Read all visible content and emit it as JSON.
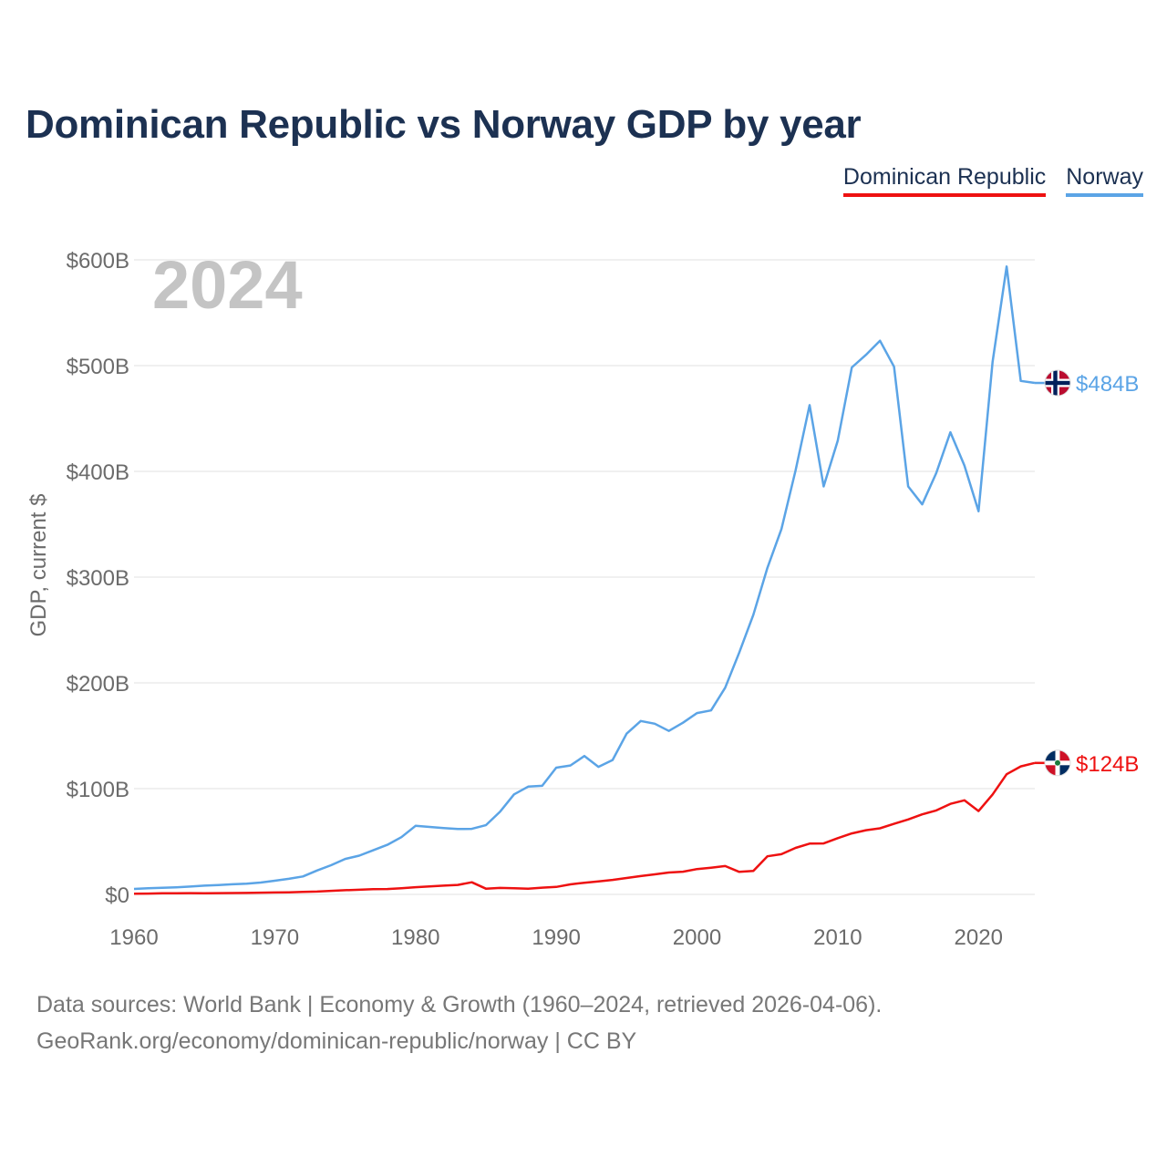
{
  "chart_data": {
    "type": "line",
    "title": "Dominican Republic vs Norway GDP by year",
    "ylabel": "GDP, current $",
    "xlabel": "",
    "year_label": "2024",
    "xlim": [
      1960,
      2024
    ],
    "ylim": [
      0,
      600
    ],
    "y_unit": "billion USD",
    "x_ticks": [
      1960,
      1970,
      1980,
      1990,
      2000,
      2010,
      2020
    ],
    "x_tick_labels": [
      "1960",
      "1970",
      "1980",
      "1990",
      "2000",
      "2010",
      "2020"
    ],
    "y_ticks": [
      0,
      100,
      200,
      300,
      400,
      500,
      600
    ],
    "y_tick_labels": [
      "$0",
      "$100B",
      "$200B",
      "$300B",
      "$400B",
      "$500B",
      "$600B"
    ],
    "grid": true,
    "legend_position": "top-right",
    "x": [
      1960,
      1961,
      1962,
      1963,
      1964,
      1965,
      1966,
      1967,
      1968,
      1969,
      1970,
      1971,
      1972,
      1973,
      1974,
      1975,
      1976,
      1977,
      1978,
      1979,
      1980,
      1981,
      1982,
      1983,
      1984,
      1985,
      1986,
      1987,
      1988,
      1989,
      1990,
      1991,
      1992,
      1993,
      1994,
      1995,
      1996,
      1997,
      1998,
      1999,
      2000,
      2001,
      2002,
      2003,
      2004,
      2005,
      2006,
      2007,
      2008,
      2009,
      2010,
      2011,
      2012,
      2013,
      2014,
      2015,
      2016,
      2017,
      2018,
      2019,
      2020,
      2021,
      2022,
      2023,
      2024
    ],
    "series": [
      {
        "name": "Dominican Republic",
        "color": "#ee1111",
        "flag": "dominican-republic-flag-icon",
        "end_label": "$124B",
        "values": [
          0.7,
          0.8,
          1.0,
          1.1,
          1.2,
          1.0,
          1.2,
          1.3,
          1.4,
          1.6,
          1.8,
          2.0,
          2.3,
          2.7,
          3.4,
          4.0,
          4.4,
          5.0,
          5.1,
          5.9,
          6.8,
          7.5,
          8.3,
          9.0,
          11.5,
          5.4,
          6.1,
          5.8,
          5.4,
          6.4,
          7.1,
          9.5,
          11.0,
          12.3,
          13.7,
          15.5,
          17.3,
          19.0,
          20.7,
          21.5,
          24.0,
          25.3,
          26.8,
          21.3,
          22.2,
          36.0,
          38.0,
          44.0,
          48.0,
          48.2,
          53.2,
          57.7,
          60.7,
          62.5,
          66.7,
          70.9,
          75.7,
          79.4,
          85.6,
          89.0,
          78.8,
          94.5,
          113.6,
          121.0,
          124.3
        ]
      },
      {
        "name": "Norway",
        "color": "#5ba4e6",
        "flag": "norway-flag-icon",
        "end_label": "$484B",
        "values": [
          5.2,
          5.8,
          6.3,
          6.7,
          7.4,
          8.3,
          8.9,
          9.6,
          10.2,
          11.2,
          12.9,
          14.7,
          17.0,
          22.6,
          27.6,
          33.5,
          36.6,
          41.7,
          46.9,
          54.1,
          64.8,
          63.8,
          62.7,
          61.8,
          62.0,
          65.4,
          78.1,
          94.6,
          101.9,
          102.7,
          119.8,
          121.9,
          130.9,
          120.6,
          127.1,
          152.0,
          164.0,
          161.4,
          154.6,
          162.3,
          171.5,
          174.0,
          195.4,
          228.6,
          264.4,
          308.7,
          345.4,
          400.9,
          462.6,
          385.8,
          429.1,
          498.3,
          510.2,
          523.5,
          499.0,
          385.8,
          368.8,
          398.4,
          437.0,
          405.5,
          362.2,
          503.5,
          593.7,
          485.5,
          483.6
        ]
      }
    ]
  },
  "legend": {
    "items": [
      "Dominican Republic",
      "Norway"
    ]
  },
  "footer": {
    "sources": "Data sources: World Bank | Economy & Growth (1960–2024, retrieved 2026-04-06).",
    "link": "GeoRank.org/economy/dominican-republic/norway | CC BY"
  }
}
